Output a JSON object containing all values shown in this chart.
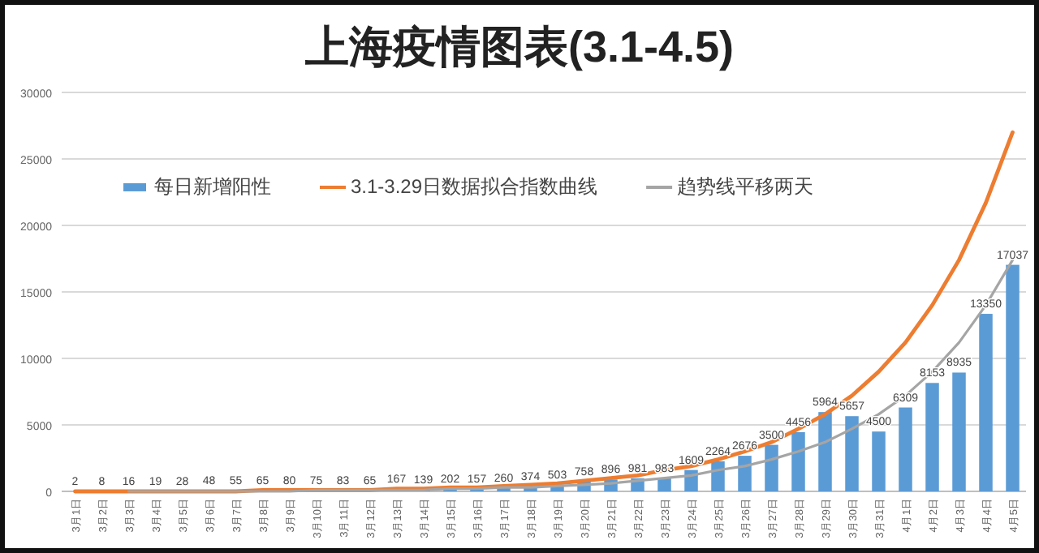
{
  "chart_data": {
    "type": "bar",
    "title": "上海疫情图表(3.1-4.5)",
    "categories": [
      "3月1日",
      "3月2日",
      "3月3日",
      "3月4日",
      "3月5日",
      "3月6日",
      "3月7日",
      "3月8日",
      "3月9日",
      "3月10日",
      "3月11日",
      "3月12日",
      "3月13日",
      "3月14日",
      "3月15日",
      "3月16日",
      "3月17日",
      "3月18日",
      "3月19日",
      "3月20日",
      "3月21日",
      "3月22日",
      "3月23日",
      "3月24日",
      "3月25日",
      "3月26日",
      "3月27日",
      "3月28日",
      "3月29日",
      "3月30日",
      "3月31日",
      "4月1日",
      "4月2日",
      "4月3日",
      "4月4日",
      "4月5日"
    ],
    "series": [
      {
        "name": "每日新增阳性",
        "color": "#5b9bd5",
        "values": [
          2,
          8,
          16,
          19,
          28,
          48,
          55,
          65,
          80,
          75,
          83,
          65,
          167,
          139,
          202,
          157,
          260,
          374,
          503,
          758,
          896,
          981,
          983,
          1609,
          2264,
          2676,
          3500,
          4456,
          5964,
          5657,
          4500,
          6309,
          8153,
          8935,
          13350,
          17037
        ],
        "value_labels": [
          "2",
          "8",
          "16",
          "19",
          "28",
          "48",
          "55",
          "65",
          "80",
          "75",
          "83",
          "65",
          "167",
          "139",
          "202",
          "157",
          "260",
          "374",
          "503",
          "758",
          "896",
          "981",
          "983",
          "1609",
          "2264",
          "2676",
          "3500",
          "4456",
          "5964",
          "5657",
          "4500",
          "6309",
          "8153",
          "8935",
          "13350",
          "17037"
        ]
      },
      {
        "name": "3.1-3.29日数据拟合指数曲线",
        "type": "line",
        "color": "#ed7d31",
        "values": [
          0,
          0,
          0,
          0,
          0,
          0,
          0,
          100,
          100,
          100,
          100,
          100,
          200,
          200,
          300,
          300,
          400,
          500,
          600,
          800,
          1000,
          1200,
          1600,
          1900,
          2400,
          3000,
          3700,
          4700,
          5800,
          7200,
          9000,
          11200,
          14000,
          17400,
          21700,
          27000
        ]
      },
      {
        "name": "趋势线平移两天",
        "type": "line",
        "color": "#a5a5a5",
        "values": [
          null,
          null,
          0,
          0,
          0,
          0,
          0,
          0,
          0,
          100,
          100,
          100,
          100,
          100,
          200,
          200,
          300,
          300,
          400,
          500,
          600,
          800,
          1000,
          1200,
          1600,
          1900,
          2400,
          3000,
          3700,
          4700,
          5800,
          7200,
          9000,
          11200,
          14000,
          17400
        ]
      }
    ],
    "ylim": [
      0,
      30000
    ],
    "yticks": [
      0,
      5000,
      10000,
      15000,
      20000,
      25000,
      30000
    ],
    "grid": "y",
    "legend": "top",
    "marker": "none",
    "line_style": "solid"
  }
}
